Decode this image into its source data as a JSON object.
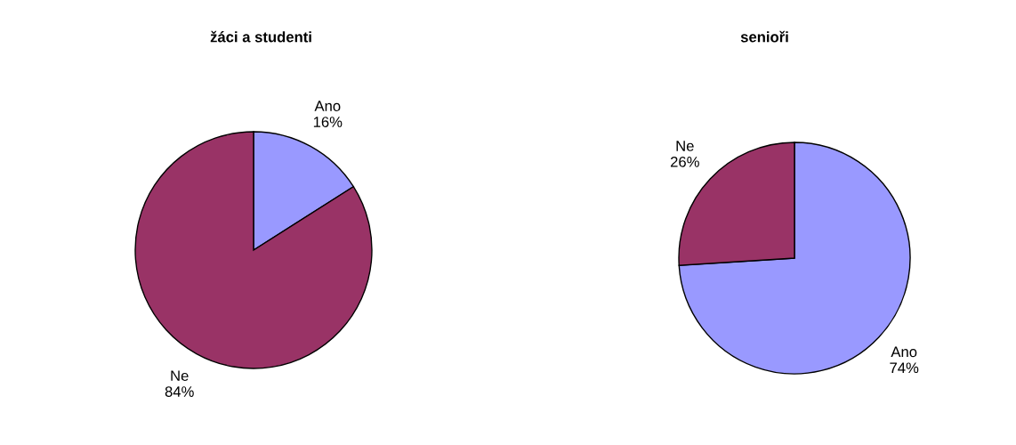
{
  "chart_data": [
    {
      "type": "pie",
      "title": "žáci a studenti",
      "categories": [
        "Ano",
        "Ne"
      ],
      "values": [
        16,
        84
      ],
      "value_labels": [
        "16%",
        "84%"
      ],
      "colors": [
        "#9999ff",
        "#993366"
      ]
    },
    {
      "type": "pie",
      "title": "senioři",
      "categories": [
        "Ano",
        "Ne"
      ],
      "values": [
        74,
        26
      ],
      "value_labels": [
        "74%",
        "26%"
      ],
      "colors": [
        "#9999ff",
        "#993366"
      ]
    }
  ]
}
